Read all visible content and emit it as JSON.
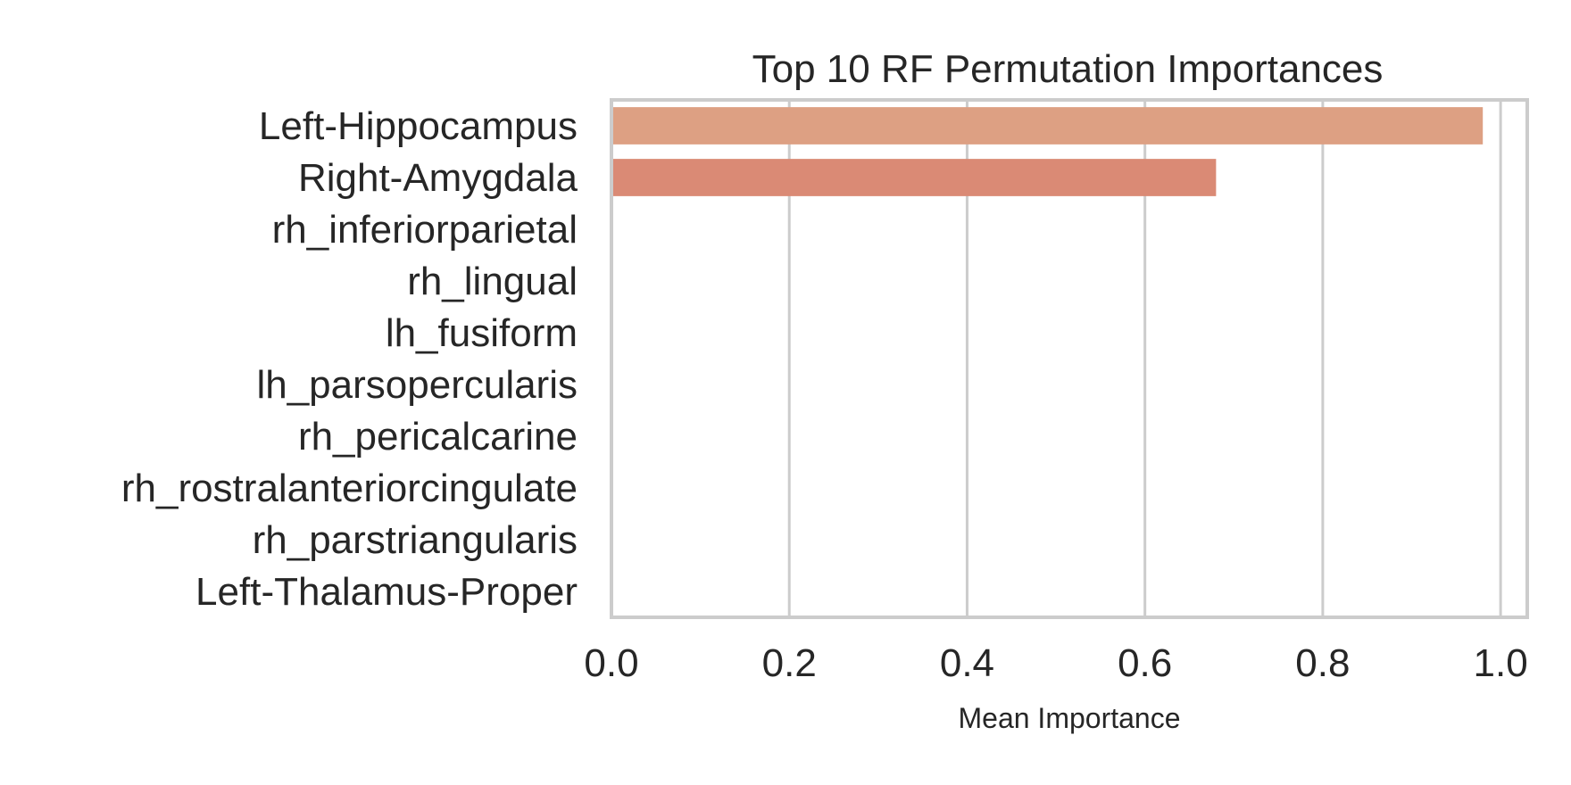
{
  "chart_data": {
    "type": "bar",
    "orientation": "horizontal",
    "title": "Top 10 RF Permutation Importances",
    "xlabel": "Mean Importance",
    "ylabel": "",
    "categories": [
      "Left-Hippocampus",
      "Right-Amygdala",
      "rh_inferiorparietal",
      "rh_lingual",
      "lh_fusiform",
      "lh_parsopercularis",
      "rh_pericalcarine",
      "rh_rostralanteriorcingulate",
      "rh_parstriangularis",
      "Left-Thalamus-Proper"
    ],
    "values": [
      0.98,
      0.68,
      0,
      0,
      0,
      0,
      0,
      0,
      0,
      0
    ],
    "bar_colors": [
      "#dda083",
      "#da8a75",
      "#d8776c",
      "#d26665",
      "#c75763",
      "#b94b63",
      "#a74263",
      "#943a63",
      "#803462",
      "#6c2e5f"
    ],
    "xlim": [
      0,
      1.03
    ],
    "xticks": [
      0.0,
      0.2,
      0.4,
      0.6,
      0.8,
      1.0
    ],
    "xtick_labels": [
      "0.0",
      "0.2",
      "0.4",
      "0.6",
      "0.8",
      "1.0"
    ],
    "grid": "vertical",
    "legend": "none"
  }
}
